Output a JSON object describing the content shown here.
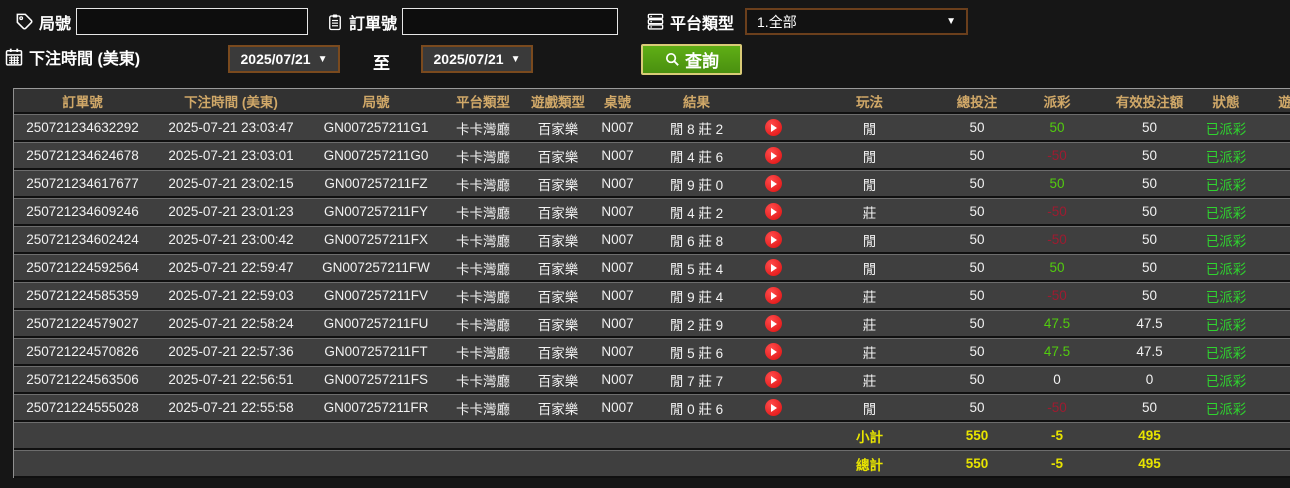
{
  "filters": {
    "round_label": "局號",
    "round_value": "",
    "order_label": "訂單號",
    "order_value": "",
    "platform_label": "平台類型",
    "platform_value": "1.全部",
    "bet_time_label": "下注時間 (美東)",
    "date_from": "2025/07/21",
    "to_label": "至",
    "date_to": "2025/07/21",
    "search_label": "查詢"
  },
  "table": {
    "headers": [
      "訂單號",
      "下注時間 (美東)",
      "局號",
      "平台類型",
      "遊戲類型",
      "桌號",
      "結果",
      "",
      "玩法",
      "總投注",
      "派彩",
      "有效投注額",
      "狀態",
      "遊"
    ],
    "rows": [
      {
        "order": "250721234632292",
        "time": "2025-07-21 23:03:47",
        "round": "GN007257211G1",
        "platform": "卡卡灣廳",
        "game": "百家樂",
        "table": "N007",
        "result": "閒 8 莊 2",
        "play": "閒",
        "bet": "50",
        "payout": "50",
        "payout_type": "win",
        "valid": "50",
        "status": "已派彩"
      },
      {
        "order": "250721234624678",
        "time": "2025-07-21 23:03:01",
        "round": "GN007257211G0",
        "platform": "卡卡灣廳",
        "game": "百家樂",
        "table": "N007",
        "result": "閒 4 莊 6",
        "play": "閒",
        "bet": "50",
        "payout": "-50",
        "payout_type": "lose",
        "valid": "50",
        "status": "已派彩"
      },
      {
        "order": "250721234617677",
        "time": "2025-07-21 23:02:15",
        "round": "GN007257211FZ",
        "platform": "卡卡灣廳",
        "game": "百家樂",
        "table": "N007",
        "result": "閒 9 莊 0",
        "play": "閒",
        "bet": "50",
        "payout": "50",
        "payout_type": "win",
        "valid": "50",
        "status": "已派彩"
      },
      {
        "order": "250721234609246",
        "time": "2025-07-21 23:01:23",
        "round": "GN007257211FY",
        "platform": "卡卡灣廳",
        "game": "百家樂",
        "table": "N007",
        "result": "閒 4 莊 2",
        "play": "莊",
        "bet": "50",
        "payout": "-50",
        "payout_type": "lose",
        "valid": "50",
        "status": "已派彩"
      },
      {
        "order": "250721234602424",
        "time": "2025-07-21 23:00:42",
        "round": "GN007257211FX",
        "platform": "卡卡灣廳",
        "game": "百家樂",
        "table": "N007",
        "result": "閒 6 莊 8",
        "play": "閒",
        "bet": "50",
        "payout": "-50",
        "payout_type": "lose",
        "valid": "50",
        "status": "已派彩"
      },
      {
        "order": "250721224592564",
        "time": "2025-07-21 22:59:47",
        "round": "GN007257211FW",
        "platform": "卡卡灣廳",
        "game": "百家樂",
        "table": "N007",
        "result": "閒 5 莊 4",
        "play": "閒",
        "bet": "50",
        "payout": "50",
        "payout_type": "win",
        "valid": "50",
        "status": "已派彩"
      },
      {
        "order": "250721224585359",
        "time": "2025-07-21 22:59:03",
        "round": "GN007257211FV",
        "platform": "卡卡灣廳",
        "game": "百家樂",
        "table": "N007",
        "result": "閒 9 莊 4",
        "play": "莊",
        "bet": "50",
        "payout": "-50",
        "payout_type": "lose",
        "valid": "50",
        "status": "已派彩"
      },
      {
        "order": "250721224579027",
        "time": "2025-07-21 22:58:24",
        "round": "GN007257211FU",
        "platform": "卡卡灣廳",
        "game": "百家樂",
        "table": "N007",
        "result": "閒 2 莊 9",
        "play": "莊",
        "bet": "50",
        "payout": "47.5",
        "payout_type": "win",
        "valid": "47.5",
        "status": "已派彩"
      },
      {
        "order": "250721224570826",
        "time": "2025-07-21 22:57:36",
        "round": "GN007257211FT",
        "platform": "卡卡灣廳",
        "game": "百家樂",
        "table": "N007",
        "result": "閒 5 莊 6",
        "play": "莊",
        "bet": "50",
        "payout": "47.5",
        "payout_type": "win",
        "valid": "47.5",
        "status": "已派彩"
      },
      {
        "order": "250721224563506",
        "time": "2025-07-21 22:56:51",
        "round": "GN007257211FS",
        "platform": "卡卡灣廳",
        "game": "百家樂",
        "table": "N007",
        "result": "閒 7 莊 7",
        "play": "莊",
        "bet": "50",
        "payout": "0",
        "payout_type": "push",
        "valid": "0",
        "status": "已派彩"
      },
      {
        "order": "250721224555028",
        "time": "2025-07-21 22:55:58",
        "round": "GN007257211FR",
        "platform": "卡卡灣廳",
        "game": "百家樂",
        "table": "N007",
        "result": "閒 0 莊 6",
        "play": "閒",
        "bet": "50",
        "payout": "-50",
        "payout_type": "lose",
        "valid": "50",
        "status": "已派彩"
      }
    ],
    "subtotal": {
      "label": "小計",
      "bet": "550",
      "payout": "-5",
      "valid": "495"
    },
    "total": {
      "label": "總計",
      "bet": "550",
      "payout": "-5",
      "valid": "495"
    }
  },
  "colors": {
    "header_text": "#d0a868",
    "positive_green": "#52cc0f",
    "negative_red": "#9e1b30",
    "status_green": "#2fd42f",
    "summary_yellow": "#e8e400",
    "button_green": "#55a314",
    "picker_border_brown": "#7a4a1e"
  }
}
